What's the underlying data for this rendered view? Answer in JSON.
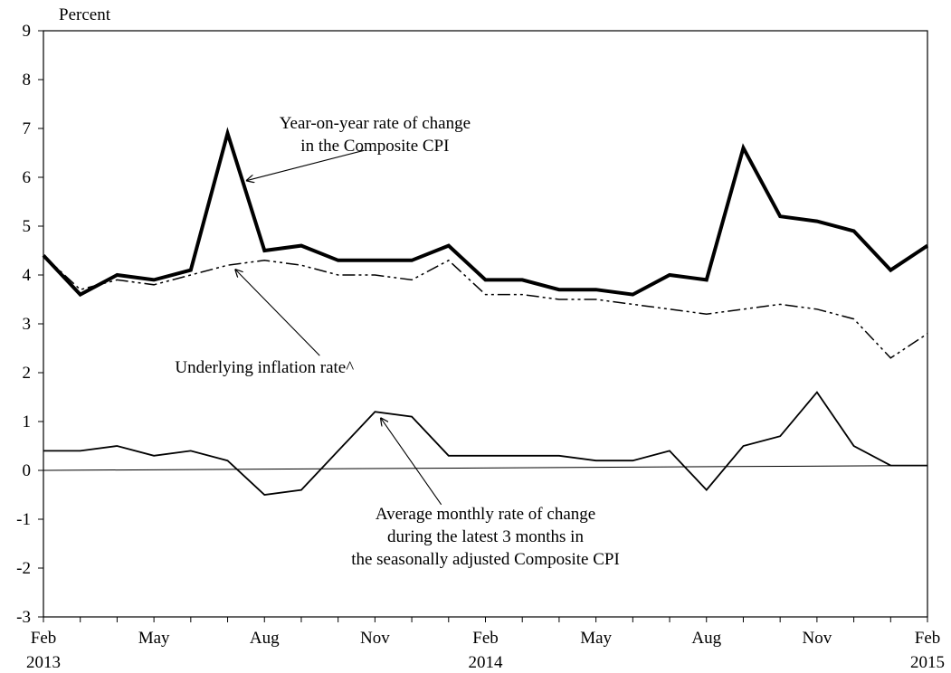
{
  "chart_data": {
    "type": "line",
    "ylabel": "Percent",
    "ylim": [
      -3,
      9
    ],
    "yticks": [
      -3,
      -2,
      -1,
      0,
      1,
      2,
      3,
      4,
      5,
      6,
      7,
      8,
      9
    ],
    "x": [
      "2013-02",
      "2013-03",
      "2013-04",
      "2013-05",
      "2013-06",
      "2013-07",
      "2013-08",
      "2013-09",
      "2013-10",
      "2013-11",
      "2013-12",
      "2014-01",
      "2014-02",
      "2014-03",
      "2014-04",
      "2014-05",
      "2014-06",
      "2014-07",
      "2014-08",
      "2014-09",
      "2014-10",
      "2014-11",
      "2014-12",
      "2015-01",
      "2015-02"
    ],
    "xtick_labels": [
      {
        "x": "2013-02",
        "month": "Feb",
        "year": "2013"
      },
      {
        "x": "2013-05",
        "month": "May",
        "year": ""
      },
      {
        "x": "2013-08",
        "month": "Aug",
        "year": ""
      },
      {
        "x": "2013-11",
        "month": "Nov",
        "year": ""
      },
      {
        "x": "2014-02",
        "month": "Feb",
        "year": "2014"
      },
      {
        "x": "2014-05",
        "month": "May",
        "year": ""
      },
      {
        "x": "2014-08",
        "month": "Aug",
        "year": ""
      },
      {
        "x": "2014-11",
        "month": "Nov",
        "year": ""
      },
      {
        "x": "2015-02",
        "month": "Feb",
        "year": "2015"
      }
    ],
    "grid": false,
    "series": [
      {
        "name": "Year-on-year rate of change in the Composite CPI",
        "style": "thick-solid",
        "color": "#000000",
        "values": [
          4.4,
          3.6,
          4.0,
          3.9,
          4.1,
          6.9,
          4.5,
          4.6,
          4.3,
          4.3,
          4.3,
          4.6,
          3.9,
          3.9,
          3.7,
          3.7,
          3.6,
          4.0,
          3.9,
          6.6,
          5.2,
          5.1,
          4.9,
          4.1,
          4.6
        ]
      },
      {
        "name": "Underlying inflation rate^",
        "style": "dash-dot-dot",
        "color": "#000000",
        "values": [
          4.4,
          3.7,
          3.9,
          3.8,
          4.0,
          4.2,
          4.3,
          4.2,
          4.0,
          4.0,
          3.9,
          4.3,
          3.6,
          3.6,
          3.5,
          3.5,
          3.4,
          3.3,
          3.2,
          3.3,
          3.4,
          3.3,
          3.1,
          2.3,
          2.8
        ]
      },
      {
        "name": "Average monthly rate of change during the latest 3 months in the seasonally adjusted Composite CPI",
        "style": "thin-solid",
        "color": "#000000",
        "values": [
          0.4,
          0.4,
          0.5,
          0.3,
          0.4,
          0.2,
          -0.5,
          -0.4,
          0.4,
          1.2,
          1.1,
          0.3,
          0.3,
          0.3,
          0.3,
          0.2,
          0.2,
          0.4,
          -0.4,
          0.5,
          0.7,
          1.6,
          0.5,
          0.1,
          0.1
        ]
      }
    ],
    "annotations": [
      {
        "lines": [
          "Year-on-year rate of change",
          "in the Composite CPI"
        ],
        "text_anchor_at": {
          "x": "2013-11",
          "y": 7.0
        },
        "arrow_from": {
          "x": 8.7,
          "y": 6.55
        },
        "arrow_to": {
          "x": 5.5,
          "y": 5.93
        }
      },
      {
        "lines": [
          "Underlying inflation rate^"
        ],
        "text_anchor_at": {
          "x": "2013-08",
          "y": 2.0
        },
        "arrow_from": {
          "x": 7.5,
          "y": 2.35
        },
        "arrow_to": {
          "x": 5.2,
          "y": 4.12
        }
      },
      {
        "lines": [
          "Average monthly rate of change",
          "during the latest 3 months in",
          "the seasonally adjusted Composite CPI"
        ],
        "text_anchor_at": {
          "x": "2014-02",
          "y": -1.0
        },
        "arrow_from": {
          "x": 10.8,
          "y": -0.7
        },
        "arrow_to": {
          "x": 9.15,
          "y": 1.08
        }
      }
    ]
  }
}
